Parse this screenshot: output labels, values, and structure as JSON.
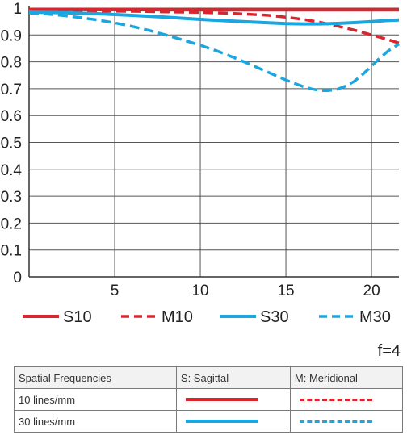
{
  "chart_data": {
    "type": "line",
    "title": "",
    "xlabel": "",
    "ylabel": "",
    "xlim": [
      0,
      21.6
    ],
    "ylim": [
      0,
      1
    ],
    "x_ticks": [
      "5",
      "10",
      "15",
      "20"
    ],
    "y_ticks": [
      "0",
      "0.1",
      "0.2",
      "0.3",
      "0.4",
      "0.5",
      "0.6",
      "0.7",
      "0.8",
      "0.9",
      "1"
    ],
    "grid": true,
    "legend_position": "bottom",
    "series": [
      {
        "name": "S10",
        "color": "#d9262e",
        "style": "solid",
        "x": [
          0,
          5,
          10,
          15,
          20,
          21.6
        ],
        "y": [
          0.995,
          0.994,
          0.993,
          0.993,
          0.993,
          0.993
        ]
      },
      {
        "name": "M10",
        "color": "#d9262e",
        "style": "dashed",
        "x": [
          0,
          2,
          4,
          6,
          8,
          10,
          12,
          14,
          15,
          16,
          17,
          18,
          19,
          20,
          21,
          21.6
        ],
        "y": [
          0.99,
          0.99,
          0.989,
          0.988,
          0.986,
          0.984,
          0.98,
          0.973,
          0.966,
          0.958,
          0.947,
          0.933,
          0.918,
          0.9,
          0.882,
          0.87
        ]
      },
      {
        "name": "S30",
        "color": "#1ba6df",
        "style": "solid",
        "x": [
          0,
          2,
          4,
          6,
          8,
          10,
          12,
          14,
          15,
          16,
          17,
          18,
          19,
          20,
          21,
          21.6
        ],
        "y": [
          0.985,
          0.983,
          0.979,
          0.973,
          0.966,
          0.958,
          0.951,
          0.945,
          0.942,
          0.941,
          0.941,
          0.943,
          0.946,
          0.95,
          0.954,
          0.956
        ]
      },
      {
        "name": "M30",
        "color": "#1ba6df",
        "style": "dashed",
        "x": [
          0,
          1,
          2,
          3,
          4,
          5,
          6,
          7,
          8,
          9,
          10,
          11,
          12,
          13,
          14,
          15,
          16,
          16.5,
          17,
          17.5,
          18,
          18.5,
          19,
          19.5,
          20,
          20.5,
          21,
          21.6
        ],
        "y": [
          0.982,
          0.978,
          0.972,
          0.965,
          0.956,
          0.945,
          0.932,
          0.917,
          0.9,
          0.881,
          0.862,
          0.84,
          0.815,
          0.788,
          0.76,
          0.732,
          0.708,
          0.699,
          0.693,
          0.693,
          0.698,
          0.71,
          0.728,
          0.754,
          0.784,
          0.815,
          0.842,
          0.866
        ]
      }
    ]
  },
  "aperture_label": "f=4",
  "key_table": {
    "header": [
      "Spatial Frequencies",
      "S: Sagittal",
      "M: Meridional"
    ],
    "rows": [
      {
        "label": "10 lines/mm",
        "sagittal_color": "#d9262e",
        "meridional_color": "#d9262e"
      },
      {
        "label": "30 lines/mm",
        "sagittal_color": "#1ba6df",
        "meridional_color": "#1ba6df"
      }
    ]
  }
}
